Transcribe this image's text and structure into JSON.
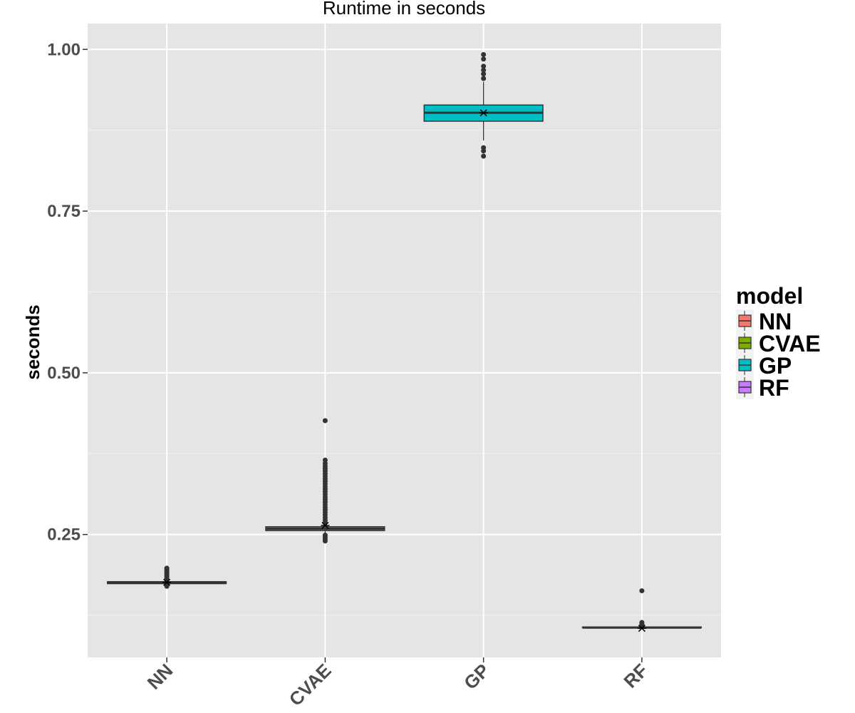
{
  "chart_data": {
    "type": "boxplot",
    "title": "Runtime in seconds",
    "xlabel": "",
    "ylabel": "seconds",
    "ylim": [
      0.06,
      1.04
    ],
    "yticks": [
      0.25,
      0.5,
      0.75,
      1.0
    ],
    "ytick_labels": [
      "0.25",
      "0.50",
      "0.75",
      "1.00"
    ],
    "categories": [
      "NN",
      "CVAE",
      "GP",
      "RF"
    ],
    "legend": {
      "title": "model",
      "position": "right",
      "entries": [
        "NN",
        "CVAE",
        "GP",
        "RF"
      ]
    },
    "grid": true,
    "colors": {
      "NN": "#F8766D",
      "CVAE": "#7CAE00",
      "GP": "#00BFC4",
      "RF": "#C77CFF"
    },
    "boxes": [
      {
        "name": "NN",
        "q1": 0.174,
        "median": 0.176,
        "q3": 0.177,
        "whisker_low": 0.173,
        "whisker_high": 0.178,
        "mean": 0.176,
        "outliers": [
          0.17,
          0.171,
          0.172,
          0.18,
          0.182,
          0.184,
          0.186,
          0.188,
          0.19,
          0.192,
          0.194,
          0.196,
          0.198
        ]
      },
      {
        "name": "CVAE",
        "q1": 0.256,
        "median": 0.259,
        "q3": 0.262,
        "whisker_low": 0.252,
        "whisker_high": 0.266,
        "mean": 0.264,
        "outliers": [
          0.24,
          0.243,
          0.246,
          0.249,
          0.268,
          0.272,
          0.276,
          0.28,
          0.284,
          0.288,
          0.292,
          0.296,
          0.3,
          0.304,
          0.308,
          0.312,
          0.316,
          0.32,
          0.324,
          0.328,
          0.332,
          0.336,
          0.34,
          0.344,
          0.348,
          0.352,
          0.356,
          0.36,
          0.365,
          0.426
        ]
      },
      {
        "name": "GP",
        "q1": 0.889,
        "median": 0.902,
        "q3": 0.914,
        "whisker_low": 0.859,
        "whisker_high": 0.95,
        "mean": 0.902,
        "outliers": [
          0.835,
          0.843,
          0.848,
          0.955,
          0.962,
          0.968,
          0.974,
          0.985,
          0.992
        ]
      },
      {
        "name": "RF",
        "q1": 0.106,
        "median": 0.106,
        "q3": 0.107,
        "whisker_low": 0.105,
        "whisker_high": 0.108,
        "mean": 0.105,
        "outliers": [
          0.11,
          0.112,
          0.114,
          0.163
        ]
      }
    ]
  }
}
